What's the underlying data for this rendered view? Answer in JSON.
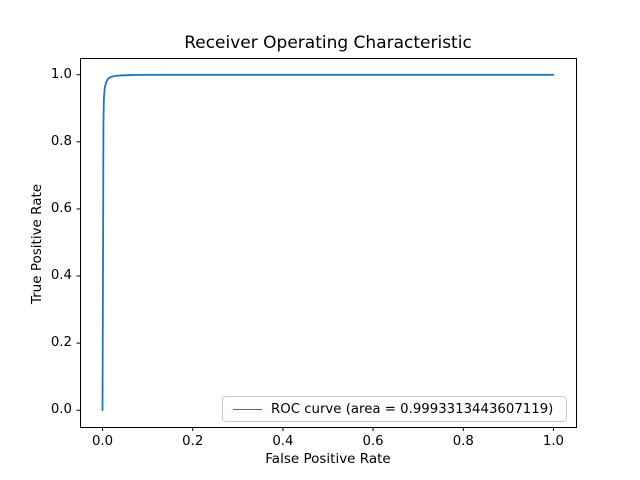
{
  "figure": {
    "background": "#ffffff",
    "text_color": "#000000",
    "spine_color": "#000000"
  },
  "chart_data": {
    "type": "line",
    "title": "Receiver Operating Characteristic",
    "xlabel": "False Positive Rate",
    "ylabel": "True Positive Rate",
    "xlim": [
      -0.05,
      1.05
    ],
    "ylim": [
      -0.05,
      1.05
    ],
    "x_ticks": [
      0.0,
      0.2,
      0.4,
      0.6,
      0.8,
      1.0
    ],
    "x_tick_labels": [
      "0.0",
      "0.2",
      "0.4",
      "0.6",
      "0.8",
      "1.0"
    ],
    "y_ticks": [
      0.0,
      0.2,
      0.4,
      0.6,
      0.8,
      1.0
    ],
    "y_tick_labels": [
      "0.0",
      "0.2",
      "0.4",
      "0.6",
      "0.8",
      "1.0"
    ],
    "grid": false,
    "legend": {
      "position": "lower right",
      "entries": [
        {
          "label": "ROC curve (area = 0.9993313443607119)",
          "color": "#1f77b4",
          "style": "solid"
        }
      ]
    },
    "series": [
      {
        "name": "ROC curve",
        "color": "#1f77b4",
        "auc": 0.9993313443607119,
        "points": [
          [
            0.0,
            0.0
          ],
          [
            0.0015,
            0.6
          ],
          [
            0.002,
            0.85
          ],
          [
            0.003,
            0.93
          ],
          [
            0.005,
            0.962
          ],
          [
            0.008,
            0.978
          ],
          [
            0.012,
            0.988
          ],
          [
            0.018,
            0.9935
          ],
          [
            0.028,
            0.9965
          ],
          [
            0.045,
            0.9985
          ],
          [
            0.08,
            0.9995
          ],
          [
            0.15,
            1.0
          ],
          [
            1.0,
            1.0
          ]
        ]
      }
    ]
  }
}
